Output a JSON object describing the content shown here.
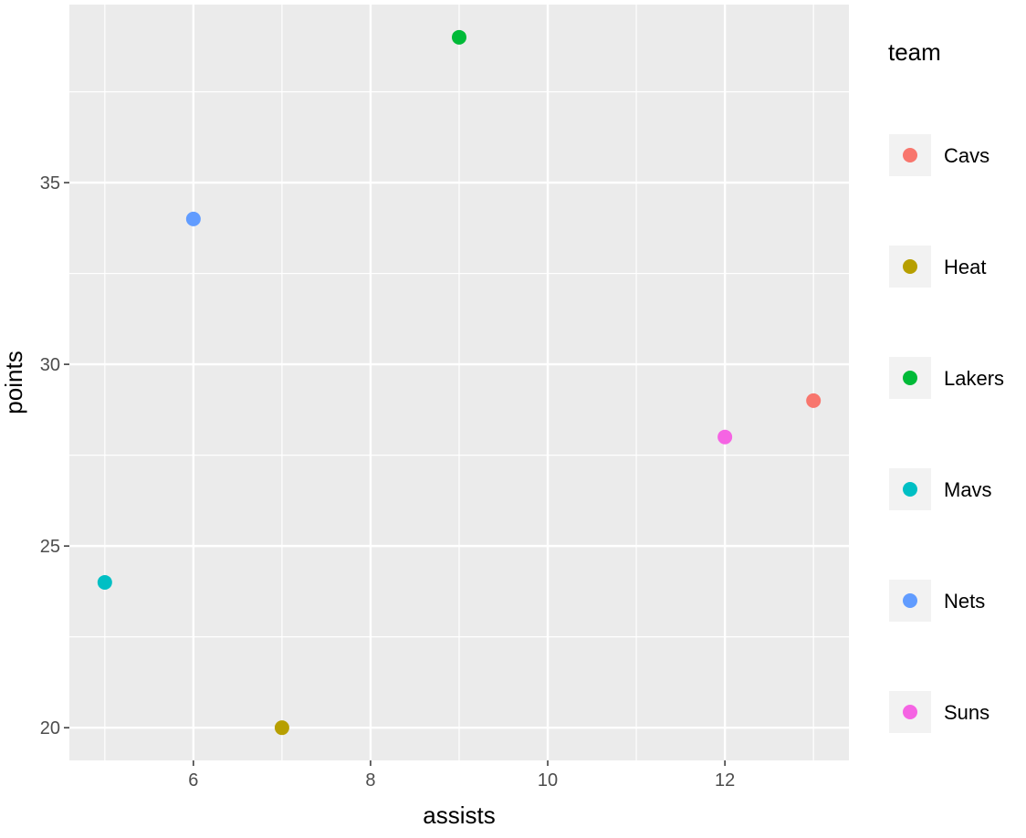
{
  "chart_data": {
    "type": "scatter",
    "title": "",
    "xlabel": "assists",
    "ylabel": "points",
    "xlim": [
      4.6,
      13.4
    ],
    "ylim": [
      19.1,
      39.9
    ],
    "xticks": [
      6,
      8,
      10,
      12
    ],
    "yticks": [
      20,
      25,
      30,
      35
    ],
    "grid": true,
    "panel_background": "#ebebeb",
    "grid_color": "#ffffff",
    "legend": {
      "title": "team",
      "position": "right"
    },
    "series": [
      {
        "name": "Cavs",
        "color": "#F8766D",
        "x": [
          13
        ],
        "y": [
          29
        ]
      },
      {
        "name": "Heat",
        "color": "#B79F00",
        "x": [
          7
        ],
        "y": [
          20
        ]
      },
      {
        "name": "Lakers",
        "color": "#00BA38",
        "x": [
          9
        ],
        "y": [
          39
        ]
      },
      {
        "name": "Mavs",
        "color": "#00BFC4",
        "x": [
          5
        ],
        "y": [
          24
        ]
      },
      {
        "name": "Nets",
        "color": "#619CFF",
        "x": [
          6
        ],
        "y": [
          34
        ]
      },
      {
        "name": "Suns",
        "color": "#F564E3",
        "x": [
          12
        ],
        "y": [
          28
        ]
      }
    ]
  }
}
